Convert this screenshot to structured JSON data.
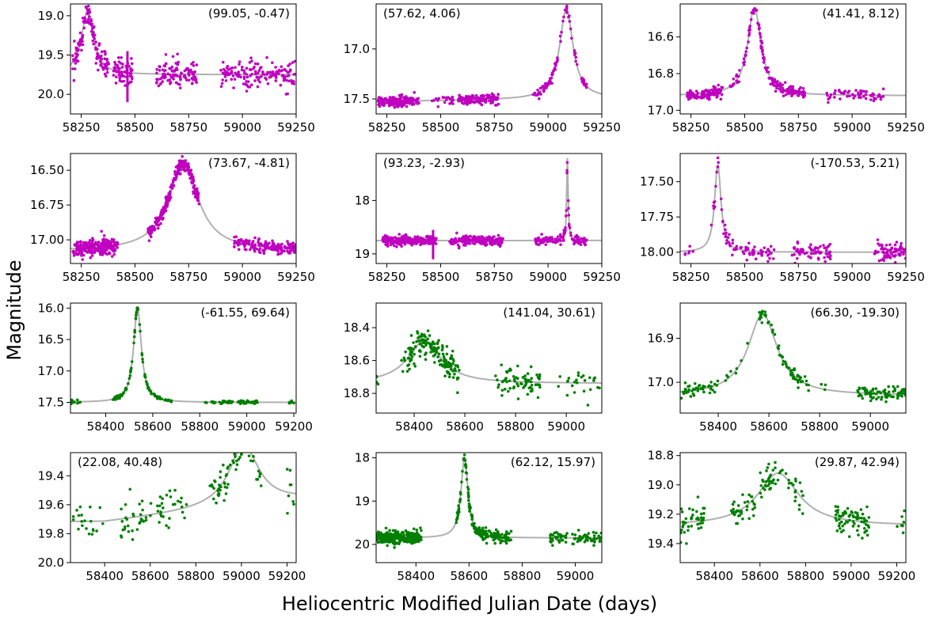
{
  "figure": {
    "ylabel": "Magnitude",
    "xlabel": "Heliocentric Modified Julian Date (days)"
  },
  "colors": {
    "magenta": "#bf00bf",
    "green": "#007f00",
    "model": "#b0b0b0"
  },
  "chart_data": [
    {
      "type": "scatter",
      "annotation": "(99.05, -0.47)",
      "color": "magenta",
      "xlim": [
        58200,
        59250
      ],
      "ylim": [
        20.25,
        18.85
      ],
      "xticks": [
        58250,
        58500,
        58750,
        59000,
        59250
      ],
      "xtick_labels": [
        "58250",
        "58500",
        "58750",
        "59000",
        "59250"
      ],
      "yticks": [
        19.0,
        19.5,
        20.0
      ],
      "ytick_labels": [
        "19.0",
        "19.5",
        "20.0"
      ],
      "model": {
        "base": 19.75,
        "amp": -0.82,
        "t0": 58280,
        "w": 34
      },
      "point_ranges": [
        [
          58210,
          58380,
          130
        ],
        [
          58400,
          58490,
          60
        ],
        [
          58600,
          58790,
          110
        ],
        [
          58900,
          59250,
          150
        ]
      ],
      "noise": 0.09,
      "vlines": [
        {
          "x": 58465,
          "y": [
            19.45,
            20.1
          ]
        }
      ]
    },
    {
      "type": "scatter",
      "annotation": "(57.62, 4.06)",
      "color": "magenta",
      "xlim": [
        58200,
        59250
      ],
      "ylim": [
        17.65,
        16.55
      ],
      "xticks": [
        58250,
        58500,
        58750,
        59000,
        59250
      ],
      "xtick_labels": [
        "58250",
        "58500",
        "58750",
        "59000",
        "59250"
      ],
      "yticks": [
        17.0,
        17.5
      ],
      "ytick_labels": [
        "17.0",
        "17.5"
      ],
      "model": {
        "base": 17.5,
        "amp": -0.9,
        "t0": 59085,
        "w": 38,
        "slope": -3e-05
      },
      "point_ranges": [
        [
          58210,
          58400,
          170
        ],
        [
          58460,
          58560,
          20
        ],
        [
          58580,
          58770,
          120
        ],
        [
          58930,
          59180,
          90
        ]
      ],
      "noise": 0.025
    },
    {
      "type": "scatter",
      "annotation": "(41.41, 8.12)",
      "color": "magenta",
      "xlim": [
        58200,
        59250
      ],
      "ylim": [
        17.02,
        16.42
      ],
      "xticks": [
        58250,
        58500,
        58750,
        59000,
        59250
      ],
      "xtick_labels": [
        "58250",
        "58500",
        "58750",
        "59000",
        "59250"
      ],
      "yticks": [
        16.6,
        16.8,
        17.0
      ],
      "ytick_labels": [
        "16.6",
        "16.8",
        "17.0"
      ],
      "model": {
        "base": 16.92,
        "amp": -0.48,
        "t0": 58545,
        "w": 38
      },
      "point_ranges": [
        [
          58230,
          58400,
          110
        ],
        [
          58430,
          58480,
          15
        ],
        [
          58490,
          58780,
          140
        ],
        [
          58880,
          59150,
          60
        ]
      ],
      "noise": 0.015
    },
    {
      "type": "scatter",
      "annotation": "(73.67, -4.81)",
      "color": "magenta",
      "xlim": [
        58200,
        59250
      ],
      "ylim": [
        17.17,
        16.38
      ],
      "xticks": [
        58250,
        58500,
        58750,
        59000,
        59250
      ],
      "xtick_labels": [
        "58250",
        "58500",
        "58750",
        "59000",
        "59250"
      ],
      "yticks": [
        16.5,
        16.75,
        17.0
      ],
      "ytick_labels": [
        "16.50",
        "16.75",
        "17.00"
      ],
      "model": {
        "base": 17.08,
        "amp": -0.63,
        "t0": 58725,
        "w": 85
      },
      "point_ranges": [
        [
          58210,
          58420,
          260
        ],
        [
          58560,
          58800,
          280
        ],
        [
          58960,
          59250,
          170
        ]
      ],
      "noise": 0.025
    },
    {
      "type": "scatter",
      "annotation": "(93.23, -2.93)",
      "color": "magenta",
      "xlim": [
        58200,
        59250
      ],
      "ylim": [
        19.18,
        17.12
      ],
      "xticks": [
        58250,
        58500,
        58750,
        59000,
        59250
      ],
      "xtick_labels": [
        "58250",
        "58500",
        "58750",
        "59000",
        "59250"
      ],
      "yticks": [
        18,
        19
      ],
      "ytick_labels": [
        "18",
        "19"
      ],
      "model": {
        "base": 18.75,
        "amp": -1.55,
        "t0": 59090,
        "w": 4
      },
      "point_ranges": [
        [
          58230,
          58480,
          260
        ],
        [
          58540,
          58790,
          230
        ],
        [
          58940,
          59180,
          130
        ]
      ],
      "noise": 0.04,
      "vlines": [
        {
          "x": 58465,
          "y": [
            18.55,
            19.1
          ]
        }
      ]
    },
    {
      "type": "scatter",
      "annotation": "(-170.53, 5.21)",
      "color": "magenta",
      "xlim": [
        58200,
        59250
      ],
      "ylim": [
        18.08,
        17.3
      ],
      "xticks": [
        58250,
        58500,
        58750,
        59000,
        59250
      ],
      "xtick_labels": [
        "58250",
        "58500",
        "58750",
        "59000",
        "59250"
      ],
      "yticks": [
        17.5,
        17.75,
        18.0
      ],
      "ytick_labels": [
        "17.50",
        "17.75",
        "18.00"
      ],
      "model": {
        "base": 18.0,
        "amp": -0.62,
        "t0": 58375,
        "w": 18
      },
      "point_ranges": [
        [
          58220,
          58260,
          6
        ],
        [
          58340,
          58640,
          80
        ],
        [
          58720,
          58900,
          70
        ],
        [
          59100,
          59250,
          70
        ]
      ],
      "noise": 0.03
    },
    {
      "type": "scatter",
      "annotation": "(-61.55, 69.64)",
      "color": "green",
      "xlim": [
        58250,
        59210
      ],
      "ylim": [
        17.67,
        15.92
      ],
      "xticks": [
        58400,
        58600,
        58800,
        59000,
        59200
      ],
      "xtick_labels": [
        "58400",
        "58600",
        "58800",
        "59000",
        "59200"
      ],
      "yticks": [
        16.0,
        16.5,
        17.0,
        17.5
      ],
      "ytick_labels": [
        "16.0",
        "16.5",
        "17.0",
        "17.5"
      ],
      "model": {
        "base": 17.5,
        "amp": -1.5,
        "t0": 58535,
        "w": 20
      },
      "point_ranges": [
        [
          58250,
          58300,
          10
        ],
        [
          58430,
          58680,
          110
        ],
        [
          58820,
          59050,
          60
        ],
        [
          59180,
          59210,
          6
        ]
      ],
      "noise": 0.012
    },
    {
      "type": "scatter",
      "annotation": "(141.04, 30.61)",
      "color": "green",
      "xlim": [
        58250,
        59140
      ],
      "ylim": [
        18.92,
        18.25
      ],
      "xticks": [
        58400,
        58600,
        58800,
        59000
      ],
      "xtick_labels": [
        "58400",
        "58600",
        "58800",
        "59000"
      ],
      "yticks": [
        18.4,
        18.6,
        18.8
      ],
      "ytick_labels": [
        "18.4",
        "18.6",
        "18.8"
      ],
      "model": {
        "base": 18.74,
        "amp": -0.26,
        "t0": 58440,
        "w": 80
      },
      "point_ranges": [
        [
          58250,
          58260,
          4
        ],
        [
          58350,
          58580,
          160
        ],
        [
          58720,
          58900,
          70
        ],
        [
          58960,
          59140,
          25
        ]
      ],
      "noise": 0.045
    },
    {
      "type": "scatter",
      "annotation": "(66.30, -19.30)",
      "color": "green",
      "xlim": [
        58250,
        59140
      ],
      "ylim": [
        17.07,
        16.82
      ],
      "xticks": [
        58400,
        58600,
        58800,
        59000
      ],
      "xtick_labels": [
        "58400",
        "58600",
        "58800",
        "59000"
      ],
      "yticks": [
        16.9,
        17.0
      ],
      "ytick_labels": [
        "16.9",
        "17.0"
      ],
      "model": {
        "base": 17.03,
        "amp": -0.185,
        "t0": 58575,
        "w": 70
      },
      "point_ranges": [
        [
          58250,
          58380,
          40
        ],
        [
          58380,
          58520,
          12
        ],
        [
          58560,
          58760,
          65
        ],
        [
          58800,
          58830,
          3
        ],
        [
          58950,
          59140,
          80
        ]
      ],
      "noise": 0.008
    },
    {
      "type": "scatter",
      "annotation": "(22.08, 40.48)",
      "color": "green",
      "xlim": [
        58250,
        59240
      ],
      "ylim": [
        20.0,
        19.24
      ],
      "xticks": [
        58400,
        58600,
        58800,
        59000,
        59200
      ],
      "xtick_labels": [
        "58400",
        "58600",
        "58800",
        "59000",
        "59200"
      ],
      "yticks": [
        19.4,
        19.6,
        19.8,
        20.0
      ],
      "ytick_labels": [
        "19.4",
        "19.6",
        "19.8",
        "20.0"
      ],
      "model": {
        "base": 19.72,
        "amp": -0.42,
        "t0": 59010,
        "w": 80,
        "base_slope": -0.00018,
        "slope_from": 58400
      },
      "point_ranges": [
        [
          58260,
          58400,
          20
        ],
        [
          58470,
          58760,
          60
        ],
        [
          58860,
          59090,
          70
        ],
        [
          59200,
          59240,
          8
        ]
      ],
      "noise": 0.07
    },
    {
      "type": "scatter",
      "annotation": "(62.12, 15.97)",
      "color": "green",
      "xlim": [
        58250,
        59100
      ],
      "ylim": [
        20.42,
        17.88
      ],
      "xticks": [
        58400,
        58600,
        58800,
        59000
      ],
      "xtick_labels": [
        "58400",
        "58600",
        "58800",
        "59000"
      ],
      "yticks": [
        18,
        19,
        20
      ],
      "ytick_labels": [
        "18",
        "19",
        "20"
      ],
      "model": {
        "base": 19.85,
        "amp": -1.85,
        "t0": 58583,
        "w": 16
      },
      "point_ranges": [
        [
          58250,
          58420,
          260
        ],
        [
          58550,
          58760,
          190
        ],
        [
          58900,
          59100,
          80
        ]
      ],
      "noise": 0.07
    },
    {
      "type": "scatter",
      "annotation": "(29.87, 42.94)",
      "color": "green",
      "xlim": [
        58250,
        59240
      ],
      "ylim": [
        19.53,
        18.78
      ],
      "xticks": [
        58400,
        58600,
        58800,
        59000,
        59200
      ],
      "xtick_labels": [
        "58400",
        "58600",
        "58800",
        "59000",
        "59200"
      ],
      "yticks": [
        18.8,
        19.0,
        19.2,
        19.4
      ],
      "ytick_labels": [
        "18.8",
        "19.0",
        "19.2",
        "19.4"
      ],
      "model": {
        "base": 19.28,
        "amp": -0.36,
        "t0": 58680,
        "w": 110
      },
      "point_ranges": [
        [
          58250,
          58360,
          40
        ],
        [
          58460,
          58790,
          90
        ],
        [
          58920,
          59080,
          70
        ],
        [
          59200,
          59240,
          8
        ]
      ],
      "noise": 0.05
    }
  ]
}
